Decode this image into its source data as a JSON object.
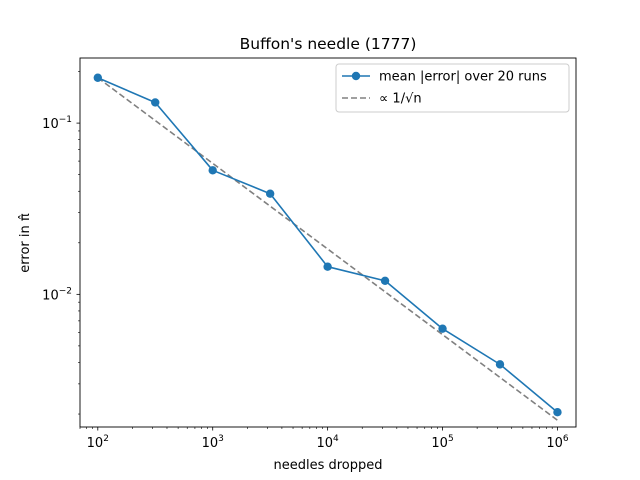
{
  "chart_data": {
    "type": "line",
    "title": "Buffon's needle (1777)",
    "xlabel": "needles dropped",
    "ylabel": "error in π̂",
    "xscale": "log",
    "yscale": "log",
    "xlim": [
      70,
      1450000
    ],
    "ylim": [
      0.00168,
      0.24
    ],
    "x_ticks": [
      {
        "value": 100,
        "base": "10",
        "exp": "2"
      },
      {
        "value": 1000,
        "base": "10",
        "exp": "3"
      },
      {
        "value": 10000,
        "base": "10",
        "exp": "4"
      },
      {
        "value": 100000,
        "base": "10",
        "exp": "5"
      },
      {
        "value": 1000000,
        "base": "10",
        "exp": "6"
      }
    ],
    "y_ticks": [
      {
        "value": 0.1,
        "base": "10",
        "exp": "−1"
      },
      {
        "value": 0.01,
        "base": "10",
        "exp": "−2"
      }
    ],
    "grid": false,
    "legend_position": "top-right",
    "series": [
      {
        "name": "mean |error| over 20 runs",
        "style": "solid-line-circle-markers",
        "color": "#1f77b4",
        "x": [
          100,
          316,
          1000,
          3162,
          10000,
          31623,
          100000,
          316228,
          1000000
        ],
        "y": [
          0.184,
          0.132,
          0.053,
          0.0387,
          0.0145,
          0.012,
          0.0063,
          0.0039,
          0.00205
        ]
      },
      {
        "name": "∝ 1/√n",
        "style": "dashed-line",
        "color": "#808080",
        "x": [
          100,
          1000000
        ],
        "y": [
          0.184,
          0.00184
        ]
      }
    ]
  }
}
